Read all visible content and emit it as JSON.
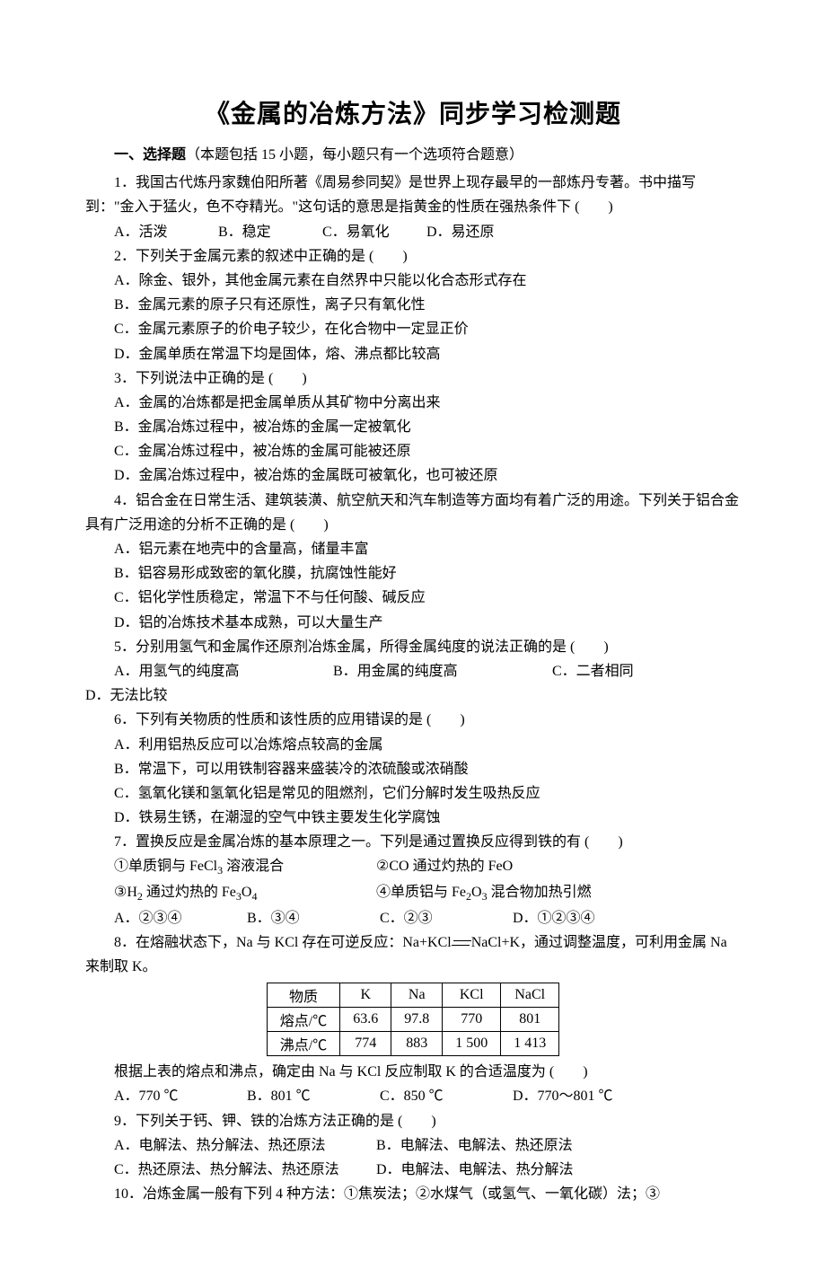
{
  "title": "《金属的冶炼方法》同步学习检测题",
  "section1": {
    "label_bold": "一、选择题",
    "label_rest": "（本题包括 15 小题，每小题只有一个选项符合题意）"
  },
  "q1": {
    "text": "1．我国古代炼丹家魏伯阳所著《周易参同契》是世界上现存最早的一部炼丹专著。书中描写到：\"金入于猛火，色不夺精光。\"这句话的意思是指黄金的性质在强热条件下 (　　)",
    "a": "A．活泼",
    "b": "B．稳定",
    "c": "C．易氧化",
    "d": "D．易还原"
  },
  "q2": {
    "text": "2．下列关于金属元素的叙述中正确的是 (　　)",
    "a": "A．除金、银外，其他金属元素在自然界中只能以化合态形式存在",
    "b": "B．金属元素的原子只有还原性，离子只有氧化性",
    "c": "C．金属元素原子的价电子较少，在化合物中一定显正价",
    "d": "D．金属单质在常温下均是固体，熔、沸点都比较高"
  },
  "q3": {
    "text": "3．下列说法中正确的是 (　　)",
    "a": "A．金属的冶炼都是把金属单质从其矿物中分离出来",
    "b": "B．金属冶炼过程中，被冶炼的金属一定被氧化",
    "c": "C．金属冶炼过程中，被冶炼的金属可能被还原",
    "d": "D．金属冶炼过程中，被冶炼的金属既可被氧化，也可被还原"
  },
  "q4": {
    "text": "4．铝合金在日常生活、建筑装潢、航空航天和汽车制造等方面均有着广泛的用途。下列关于铝合金具有广泛用途的分析不正确的是 (　　)",
    "a": "A．铝元素在地壳中的含量高，储量丰富",
    "b": "B．铝容易形成致密的氧化膜，抗腐蚀性能好",
    "c": "C．铝化学性质稳定，常温下不与任何酸、碱反应",
    "d": "D．铝的冶炼技术基本成熟，可以大量生产"
  },
  "q5": {
    "text": "5．分别用氢气和金属作还原剂冶炼金属，所得金属纯度的说法正确的是 (　　)",
    "a": "A．用氢气的纯度高",
    "b": "B．用金属的纯度高",
    "c": "C．二者相同",
    "d": "D．无法比较"
  },
  "q6": {
    "text": "6．下列有关物质的性质和该性质的应用错误的是 (　　)",
    "a": "A．利用铝热反应可以冶炼熔点较高的金属",
    "b": "B．常温下，可以用铁制容器来盛装冷的浓硫酸或浓硝酸",
    "c": "C．氢氧化镁和氢氧化铝是常见的阻燃剂，它们分解时发生吸热反应",
    "d": "D．铁易生锈，在潮湿的空气中铁主要发生化学腐蚀"
  },
  "q7": {
    "text": "7．置换反应是金属冶炼的基本原理之一。下列是通过置换反应得到铁的有 (　　)",
    "i1_pre": "①单质铜与 FeCl",
    "i1_sub": "3",
    "i1_post": " 溶液混合",
    "i2": "②CO 通过灼热的 FeO",
    "i3_pre": "③H",
    "i3_sub1": "2",
    "i3_mid": " 通过灼热的 Fe",
    "i3_sub2": "3",
    "i3_mid2": "O",
    "i3_sub3": "4",
    "i4_pre": "④单质铝与 Fe",
    "i4_sub1": "2",
    "i4_mid": "O",
    "i4_sub2": "3",
    "i4_post": " 混合物加热引燃",
    "a": "A．②③④",
    "b": "B．③④",
    "c": "C．②③",
    "d": "D．①②③④"
  },
  "q8": {
    "text1": "8．在熔融状态下，Na 与 KCl 存在可逆反应：Na+KCl",
    "text2": "NaCl+K，通过调整温度，可利用金属 Na 来制取 K。",
    "table": {
      "rows": [
        [
          "物质",
          "K",
          "Na",
          "KCl",
          "NaCl"
        ],
        [
          "熔点/℃",
          "63.6",
          "97.8",
          "770",
          "801"
        ],
        [
          "沸点/℃",
          "774",
          "883",
          "1 500",
          "1 413"
        ]
      ]
    },
    "postline": "根据上表的熔点和沸点，确定由 Na 与 KCl 反应制取 K 的合适温度为 (　　)",
    "a": "A．770 ℃",
    "b": "B．801 ℃",
    "c": "C．850 ℃",
    "d": "D．770～801 ℃"
  },
  "q9": {
    "text": "9．下列关于钙、钾、铁的冶炼方法正确的是 (　　)",
    "a": "A．电解法、热分解法、热还原法",
    "b": "B．电解法、电解法、热还原法",
    "c": "C．热还原法、热分解法、热还原法",
    "d": "D．电解法、电解法、热分解法"
  },
  "q10": {
    "text": "10．冶炼金属一般有下列 4 种方法：①焦炭法；②水煤气（或氢气、一氧化碳）法；③"
  }
}
